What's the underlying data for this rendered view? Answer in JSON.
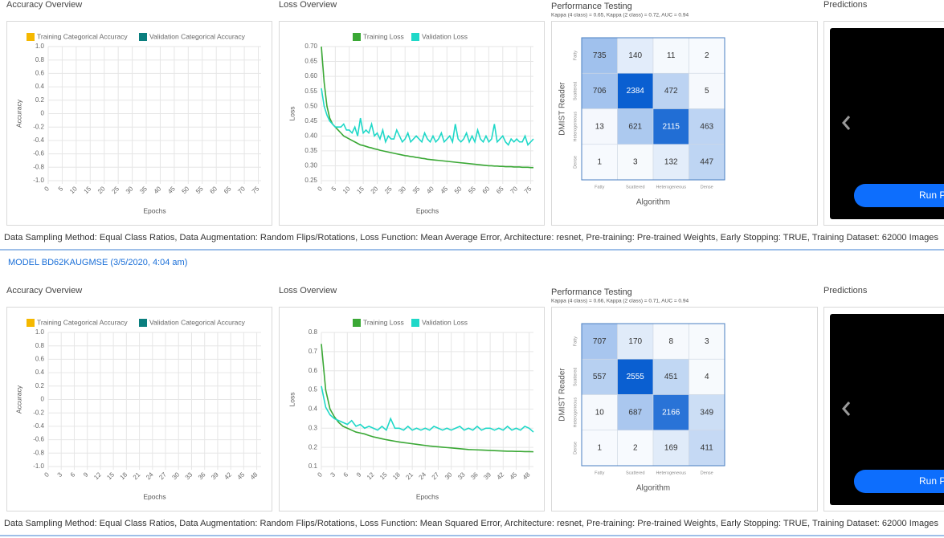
{
  "sections": [
    {
      "accuracy": {
        "type": "line",
        "title": "Accuracy Overview",
        "x_label": "Epochs",
        "y_label": "Accuracy",
        "series": [
          {
            "name": "Training Categorical Accuracy",
            "color": "#f5b800"
          },
          {
            "name": "Validation Categorical Accuracy",
            "color": "#0a7e7e"
          }
        ],
        "xlim": [
          0,
          76
        ],
        "xticks": [
          0,
          5,
          10,
          15,
          20,
          25,
          30,
          35,
          40,
          45,
          50,
          55,
          60,
          65,
          70,
          75
        ],
        "ylim": [
          -1,
          1
        ],
        "yticks": [
          {
            "value": 1,
            "label": "1.0"
          },
          0.8,
          0.6,
          0.4,
          0.2,
          0,
          -0.2,
          -0.4,
          -0.6,
          -0.8,
          {
            "value": -1,
            "label": "-1.0"
          }
        ],
        "grid": true
      },
      "loss": {
        "type": "line",
        "title": "Loss Overview",
        "x_label": "Epochs",
        "y_label": "Loss",
        "x": [
          0,
          1,
          2,
          3,
          4,
          5,
          6,
          7,
          8,
          9,
          10,
          11,
          12,
          13,
          14,
          15,
          16,
          17,
          18,
          19,
          20,
          21,
          22,
          23,
          24,
          25,
          26,
          27,
          28,
          29,
          30,
          31,
          32,
          33,
          34,
          35,
          36,
          37,
          38,
          39,
          40,
          41,
          42,
          43,
          44,
          45,
          46,
          47,
          48,
          49,
          50,
          51,
          52,
          53,
          54,
          55,
          56,
          57,
          58,
          59,
          60,
          61,
          62,
          63,
          64,
          65,
          66,
          67,
          68,
          69,
          70,
          71,
          72,
          73,
          74,
          75,
          76
        ],
        "series": [
          {
            "name": "Training Loss",
            "color": "#3aa835",
            "values": [
              0.7,
              0.58,
              0.5,
              0.46,
              0.44,
              0.43,
              0.42,
              0.41,
              0.4,
              0.395,
              0.39,
              0.385,
              0.38,
              0.375,
              0.37,
              0.368,
              0.365,
              0.362,
              0.36,
              0.357,
              0.355,
              0.352,
              0.35,
              0.348,
              0.346,
              0.344,
              0.342,
              0.34,
              0.338,
              0.336,
              0.334,
              0.333,
              0.331,
              0.33,
              0.328,
              0.327,
              0.325,
              0.324,
              0.322,
              0.321,
              0.32,
              0.319,
              0.318,
              0.317,
              0.316,
              0.315,
              0.314,
              0.313,
              0.312,
              0.311,
              0.31,
              0.309,
              0.308,
              0.307,
              0.306,
              0.305,
              0.304,
              0.303,
              0.302,
              0.301,
              0.3,
              0.3,
              0.299,
              0.299,
              0.298,
              0.298,
              0.297,
              0.297,
              0.297,
              0.296,
              0.296,
              0.296,
              0.295,
              0.295,
              0.295,
              0.294,
              0.294
            ]
          },
          {
            "name": "Validation Loss",
            "color": "#1fd8c8",
            "values": [
              0.56,
              0.5,
              0.47,
              0.45,
              0.44,
              0.43,
              0.43,
              0.43,
              0.44,
              0.42,
              0.42,
              0.41,
              0.43,
              0.4,
              0.46,
              0.41,
              0.42,
              0.41,
              0.44,
              0.4,
              0.41,
              0.39,
              0.42,
              0.38,
              0.4,
              0.39,
              0.39,
              0.42,
              0.4,
              0.38,
              0.39,
              0.41,
              0.38,
              0.39,
              0.4,
              0.39,
              0.38,
              0.41,
              0.39,
              0.38,
              0.4,
              0.38,
              0.39,
              0.41,
              0.38,
              0.39,
              0.4,
              0.38,
              0.44,
              0.39,
              0.38,
              0.39,
              0.41,
              0.38,
              0.4,
              0.38,
              0.42,
              0.39,
              0.38,
              0.4,
              0.38,
              0.39,
              0.44,
              0.38,
              0.39,
              0.4,
              0.38,
              0.37,
              0.39,
              0.38,
              0.39,
              0.38,
              0.38,
              0.4,
              0.37,
              0.38,
              0.39
            ]
          }
        ],
        "xlim": [
          0,
          76
        ],
        "xticks": [
          0,
          5,
          10,
          15,
          20,
          25,
          30,
          35,
          40,
          45,
          50,
          55,
          60,
          65,
          70,
          75
        ],
        "ylim": [
          0.25,
          0.7
        ],
        "yticks": [
          {
            "value": 0.7,
            "label": "0.70"
          },
          0.65,
          {
            "value": 0.6,
            "label": "0.60"
          },
          0.55,
          {
            "value": 0.5,
            "label": "0.50"
          },
          0.45,
          {
            "value": 0.4,
            "label": "0.40"
          },
          0.35,
          {
            "value": 0.3,
            "label": "0.30"
          },
          0.25
        ],
        "grid": true
      },
      "performance": {
        "type": "heatmap",
        "title": "Performance Testing",
        "subtitle": "Kappa (4 class) = 0.65, Kappa (2 class) = 0.72, AUC = 0.94",
        "y_label": "DMIST Reader",
        "x_label": "Algorithm",
        "categories": [
          "Fatty",
          "Scattered",
          "Heterogeneous",
          "Dense"
        ],
        "color": "#0a5fd1",
        "matrix": [
          [
            735,
            140,
            11,
            2
          ],
          [
            706,
            2384,
            472,
            5
          ],
          [
            13,
            621,
            2115,
            463
          ],
          [
            1,
            3,
            132,
            447
          ]
        ]
      },
      "predictions": {
        "title": "Predictions",
        "button": "Run Predictions"
      },
      "description": "Data Sampling Method: Equal Class Ratios, Data Augmentation: Random Flips/Rotations, Loss Function: Mean Average Error, Architecture: resnet, Pre-training: Pre-trained Weights, Early Stopping: TRUE, Training Dataset: 62000 Images"
    },
    {
      "model_title": "MODEL BD62KAUGMSE (3/5/2020, 4:04 am)",
      "accuracy": {
        "type": "line",
        "title": "Accuracy Overview",
        "x_label": "Epochs",
        "y_label": "Accuracy",
        "series": [
          {
            "name": "Training Categorical Accuracy",
            "color": "#f5b800"
          },
          {
            "name": "Validation Categorical Accuracy",
            "color": "#0a7e7e"
          }
        ],
        "xlim": [
          0,
          49
        ],
        "xticks": [
          0,
          3,
          6,
          9,
          12,
          15,
          18,
          21,
          24,
          27,
          30,
          33,
          36,
          39,
          42,
          45,
          48
        ],
        "ylim": [
          -1,
          1
        ],
        "yticks": [
          {
            "value": 1,
            "label": "1.0"
          },
          0.8,
          0.6,
          0.4,
          0.2,
          0,
          -0.2,
          -0.4,
          -0.6,
          -0.8,
          {
            "value": -1,
            "label": "-1.0"
          }
        ],
        "grid": true
      },
      "loss": {
        "type": "line",
        "title": "Loss Overview",
        "x_label": "Epochs",
        "y_label": "Loss",
        "x": [
          0,
          1,
          2,
          3,
          4,
          5,
          6,
          7,
          8,
          9,
          10,
          11,
          12,
          13,
          14,
          15,
          16,
          17,
          18,
          19,
          20,
          21,
          22,
          23,
          24,
          25,
          26,
          27,
          28,
          29,
          30,
          31,
          32,
          33,
          34,
          35,
          36,
          37,
          38,
          39,
          40,
          41,
          42,
          43,
          44,
          45,
          46,
          47,
          48,
          49
        ],
        "series": [
          {
            "name": "Training Loss",
            "color": "#3aa835",
            "values": [
              0.74,
              0.5,
              0.4,
              0.36,
              0.33,
              0.31,
              0.3,
              0.29,
              0.28,
              0.275,
              0.27,
              0.262,
              0.255,
              0.25,
              0.245,
              0.24,
              0.236,
              0.232,
              0.228,
              0.225,
              0.222,
              0.219,
              0.216,
              0.213,
              0.21,
              0.207,
              0.205,
              0.203,
              0.201,
              0.199,
              0.197,
              0.195,
              0.193,
              0.191,
              0.189,
              0.188,
              0.187,
              0.186,
              0.185,
              0.184,
              0.183,
              0.182,
              0.181,
              0.18,
              0.18,
              0.179,
              0.179,
              0.178,
              0.178,
              0.177
            ]
          },
          {
            "name": "Validation Loss",
            "color": "#1fd8c8",
            "values": [
              0.52,
              0.41,
              0.37,
              0.35,
              0.34,
              0.33,
              0.32,
              0.34,
              0.31,
              0.32,
              0.3,
              0.31,
              0.3,
              0.29,
              0.31,
              0.29,
              0.35,
              0.3,
              0.3,
              0.29,
              0.31,
              0.29,
              0.3,
              0.29,
              0.3,
              0.29,
              0.31,
              0.3,
              0.29,
              0.3,
              0.29,
              0.3,
              0.31,
              0.29,
              0.3,
              0.29,
              0.31,
              0.29,
              0.3,
              0.3,
              0.29,
              0.3,
              0.29,
              0.31,
              0.29,
              0.3,
              0.29,
              0.31,
              0.3,
              0.28
            ]
          }
        ],
        "xlim": [
          0,
          49
        ],
        "xticks": [
          0,
          3,
          6,
          9,
          12,
          15,
          18,
          21,
          24,
          27,
          30,
          33,
          36,
          39,
          42,
          45,
          48
        ],
        "ylim": [
          0.1,
          0.8
        ],
        "yticks": [
          0.8,
          0.7,
          0.6,
          0.5,
          0.4,
          0.3,
          0.2,
          0.1
        ],
        "grid": true
      },
      "performance": {
        "type": "heatmap",
        "title": "Performance Testing",
        "subtitle": "Kappa (4 class) = 0.66, Kappa (2 class) = 0.71, AUC = 0.94",
        "y_label": "DMIST Reader",
        "x_label": "Algorithm",
        "categories": [
          "Fatty",
          "Scattered",
          "Heterogeneous",
          "Dense"
        ],
        "color": "#0a5fd1",
        "matrix": [
          [
            707,
            170,
            8,
            3
          ],
          [
            557,
            2555,
            451,
            4
          ],
          [
            10,
            687,
            2166,
            349
          ],
          [
            1,
            2,
            169,
            411
          ]
        ]
      },
      "predictions": {
        "title": "Predictions",
        "button": "Run Predictions"
      },
      "description": "Data Sampling Method: Equal Class Ratios, Data Augmentation: Random Flips/Rotations, Loss Function: Mean Squared Error, Architecture: resnet, Pre-training: Pre-trained Weights, Early Stopping: TRUE, Training Dataset: 62000 Images"
    }
  ]
}
